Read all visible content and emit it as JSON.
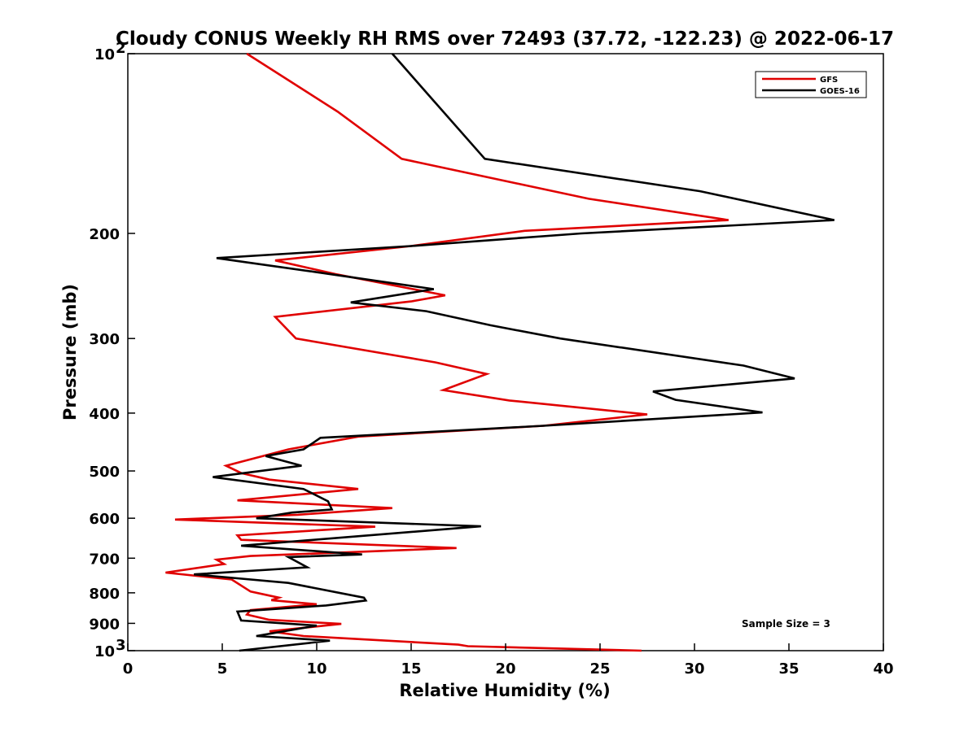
{
  "chart_data": {
    "type": "line",
    "title": "Cloudy CONUS Weekly RH RMS over 72493 (37.72, -122.23) @ 2022-06-17",
    "xlabel": "Relative Humidity (%)",
    "ylabel": "Pressure (mb)",
    "xlim": [
      0,
      40
    ],
    "ylim": [
      100,
      1000
    ],
    "y_scale": "log",
    "y_reversed": true,
    "grid": false,
    "legend_position": "top-right",
    "x_ticks": [
      {
        "value": 0,
        "label": "0"
      },
      {
        "value": 5,
        "label": "5"
      },
      {
        "value": 10,
        "label": "10"
      },
      {
        "value": 15,
        "label": "15"
      },
      {
        "value": 20,
        "label": "20"
      },
      {
        "value": 25,
        "label": "25"
      },
      {
        "value": 30,
        "label": "30"
      },
      {
        "value": 35,
        "label": "35"
      },
      {
        "value": 40,
        "label": "40"
      }
    ],
    "y_ticks": [
      {
        "value": 100,
        "label": "10",
        "sup": "2"
      },
      {
        "value": 200,
        "label": "200",
        "sup": ""
      },
      {
        "value": 300,
        "label": "300",
        "sup": ""
      },
      {
        "value": 400,
        "label": "400",
        "sup": ""
      },
      {
        "value": 500,
        "label": "500",
        "sup": ""
      },
      {
        "value": 600,
        "label": "600",
        "sup": ""
      },
      {
        "value": 700,
        "label": "700",
        "sup": ""
      },
      {
        "value": 800,
        "label": "800",
        "sup": ""
      },
      {
        "value": 900,
        "label": "900",
        "sup": ""
      },
      {
        "value": 1000,
        "label": "10",
        "sup": "3"
      }
    ],
    "series": [
      {
        "name": "GFS",
        "color": "#e00000",
        "points": [
          [
            6.3,
            100
          ],
          [
            11.1,
            125
          ],
          [
            14.5,
            150
          ],
          [
            24.4,
            175
          ],
          [
            31.8,
            190
          ],
          [
            21,
            198
          ],
          [
            15,
            210
          ],
          [
            7.8,
            222
          ],
          [
            11,
            234
          ],
          [
            16.8,
            254
          ],
          [
            15,
            260
          ],
          [
            7.8,
            276
          ],
          [
            8.9,
            300
          ],
          [
            16.3,
            329
          ],
          [
            19,
            344
          ],
          [
            16.7,
            366
          ],
          [
            20.2,
            381
          ],
          [
            27.5,
            402
          ],
          [
            22,
            420
          ],
          [
            12.2,
            438
          ],
          [
            8.5,
            460
          ],
          [
            5.2,
            490
          ],
          [
            6,
            504
          ],
          [
            7.5,
            517
          ],
          [
            12.2,
            536
          ],
          [
            5.8,
            560
          ],
          [
            14,
            577
          ],
          [
            9,
            592
          ],
          [
            2.5,
            603
          ],
          [
            13.1,
            620
          ],
          [
            5.8,
            641
          ],
          [
            6,
            652
          ],
          [
            17.4,
            673
          ],
          [
            6.5,
            694
          ],
          [
            4.7,
            704
          ],
          [
            5.1,
            716
          ],
          [
            2,
            740
          ],
          [
            5.5,
            760
          ],
          [
            6.5,
            796
          ],
          [
            8,
            815
          ],
          [
            7.6,
            823
          ],
          [
            10,
            836
          ],
          [
            6.5,
            855
          ],
          [
            6.3,
            870
          ],
          [
            7.5,
            888
          ],
          [
            11.3,
            902
          ],
          [
            7.5,
            928
          ],
          [
            9.3,
            945
          ],
          [
            17.5,
            977
          ],
          [
            18,
            983
          ],
          [
            27.2,
            1000
          ]
        ]
      },
      {
        "name": "GOES-16",
        "color": "#000000",
        "points": [
          [
            14,
            100
          ],
          [
            16.2,
            120
          ],
          [
            18.9,
            150
          ],
          [
            30.3,
            170
          ],
          [
            37.4,
            190
          ],
          [
            24,
            200
          ],
          [
            15,
            210
          ],
          [
            4.7,
            220
          ],
          [
            9.9,
            232
          ],
          [
            16.2,
            248
          ],
          [
            11.8,
            261
          ],
          [
            15.8,
            270
          ],
          [
            19.2,
            285
          ],
          [
            22.9,
            300
          ],
          [
            32.6,
            333
          ],
          [
            35.3,
            350
          ],
          [
            27.8,
            368
          ],
          [
            29,
            380
          ],
          [
            33.6,
            399
          ],
          [
            22,
            420
          ],
          [
            10.2,
            440
          ],
          [
            9.3,
            460
          ],
          [
            7.3,
            472
          ],
          [
            9.2,
            490
          ],
          [
            4.5,
            512
          ],
          [
            9.3,
            536
          ],
          [
            10.6,
            562
          ],
          [
            10.8,
            580
          ],
          [
            8.7,
            587
          ],
          [
            6.8,
            600
          ],
          [
            18.7,
            619
          ],
          [
            6,
            667
          ],
          [
            12.4,
            690
          ],
          [
            8.5,
            697
          ],
          [
            9.5,
            725
          ],
          [
            3.5,
            745
          ],
          [
            8.5,
            770
          ],
          [
            12.5,
            815
          ],
          [
            12.6,
            824
          ],
          [
            10.5,
            840
          ],
          [
            5.8,
            860
          ],
          [
            6,
            890
          ],
          [
            10,
            908
          ],
          [
            6.8,
            945
          ],
          [
            10.7,
            962
          ],
          [
            5.9,
            1000
          ]
        ]
      }
    ],
    "annotation": "Sample Size = 3"
  }
}
